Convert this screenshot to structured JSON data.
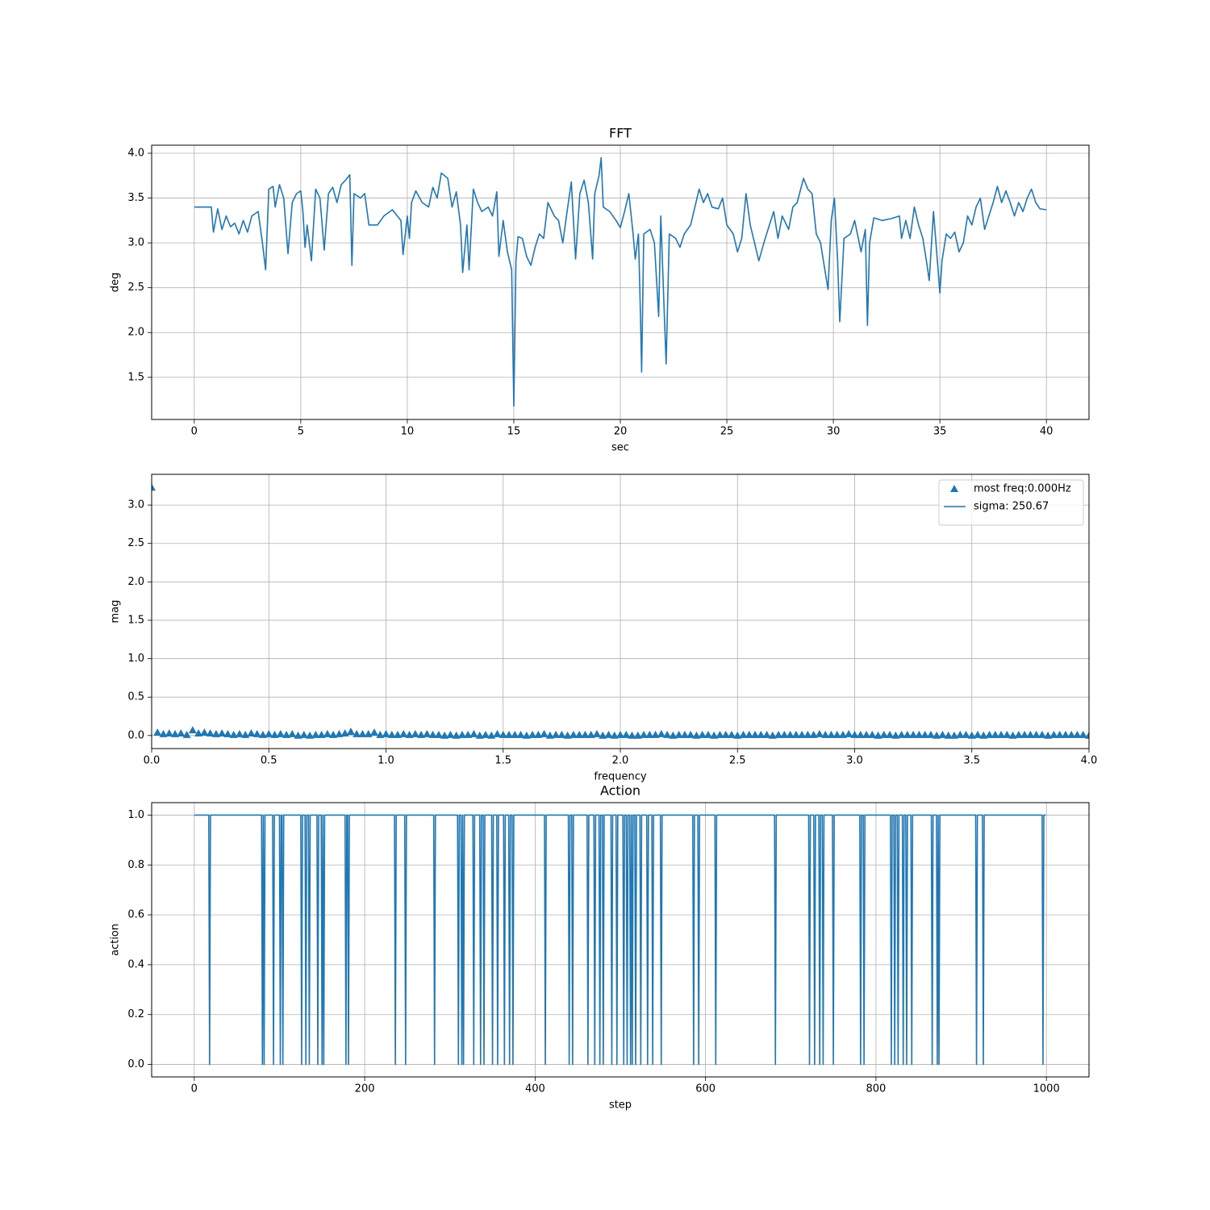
{
  "chart_data": [
    {
      "type": "line",
      "title": "FFT",
      "xlabel": "sec",
      "ylabel": "deg",
      "color": "#1f77b4",
      "grid": true,
      "xlim": [
        -2,
        42
      ],
      "ylim": [
        1.03,
        4.09
      ],
      "xticks": [
        0,
        5,
        10,
        15,
        20,
        25,
        30,
        35,
        40
      ],
      "yticks": [
        1.5,
        {
          "value": 2.0,
          "label": "2.0"
        },
        2.5,
        {
          "value": 3.0,
          "label": "3.0"
        },
        3.5,
        {
          "value": 4.0,
          "label": "4.0"
        }
      ],
      "x": [
        0,
        0.8,
        0.9,
        1.1,
        1.3,
        1.5,
        1.7,
        1.9,
        2.1,
        2.3,
        2.5,
        2.7,
        3.0,
        3.2,
        3.35,
        3.5,
        3.7,
        3.8,
        4.0,
        4.2,
        4.4,
        4.6,
        4.8,
        5.0,
        5.1,
        5.2,
        5.3,
        5.5,
        5.7,
        5.9,
        6.1,
        6.3,
        6.5,
        6.7,
        6.9,
        7.1,
        7.3,
        7.4,
        7.5,
        7.8,
        8.0,
        8.2,
        8.6,
        8.9,
        9.3,
        9.7,
        9.8,
        10.0,
        10.1,
        10.2,
        10.4,
        10.7,
        11.0,
        11.2,
        11.4,
        11.6,
        11.9,
        12.1,
        12.3,
        12.5,
        12.6,
        12.8,
        12.9,
        13.1,
        13.3,
        13.5,
        13.8,
        14.0,
        14.2,
        14.3,
        14.5,
        14.7,
        14.9,
        15.0,
        15.1,
        15.2,
        15.4,
        15.6,
        15.8,
        16.0,
        16.2,
        16.4,
        16.6,
        16.9,
        17.1,
        17.3,
        17.5,
        17.7,
        17.9,
        18.1,
        18.3,
        18.5,
        18.7,
        18.8,
        19.0,
        19.1,
        19.2,
        19.5,
        19.8,
        20.0,
        20.2,
        20.4,
        20.6,
        20.7,
        20.85,
        20.95,
        21.0,
        21.1,
        21.4,
        21.6,
        21.8,
        21.9,
        22.05,
        22.15,
        22.3,
        22.6,
        22.8,
        23.0,
        23.3,
        23.5,
        23.7,
        23.9,
        24.1,
        24.3,
        24.6,
        24.8,
        25.0,
        25.3,
        25.5,
        25.7,
        25.9,
        26.1,
        26.3,
        26.5,
        26.8,
        27.0,
        27.2,
        27.4,
        27.6,
        27.9,
        28.1,
        28.3,
        28.6,
        28.8,
        29.0,
        29.2,
        29.4,
        29.6,
        29.75,
        29.9,
        30.05,
        30.2,
        30.3,
        30.5,
        30.8,
        31.0,
        31.3,
        31.5,
        31.6,
        31.7,
        31.9,
        32.3,
        32.7,
        33.1,
        33.2,
        33.4,
        33.6,
        33.8,
        34.0,
        34.2,
        34.4,
        34.5,
        34.7,
        34.9,
        35.0,
        35.1,
        35.3,
        35.5,
        35.7,
        35.9,
        36.1,
        36.3,
        36.5,
        36.7,
        36.9,
        37.1,
        37.3,
        37.5,
        37.7,
        37.9,
        38.1,
        38.3,
        38.5,
        38.7,
        38.9,
        39.1,
        39.3,
        39.5,
        39.7,
        40.0
      ],
      "values": [
        3.4,
        3.4,
        3.12,
        3.38,
        3.15,
        3.3,
        3.18,
        3.22,
        3.1,
        3.25,
        3.12,
        3.3,
        3.35,
        3.0,
        2.7,
        3.6,
        3.63,
        3.4,
        3.65,
        3.5,
        2.88,
        3.45,
        3.55,
        3.58,
        3.35,
        2.95,
        3.2,
        2.8,
        3.6,
        3.5,
        2.92,
        3.55,
        3.62,
        3.45,
        3.65,
        3.7,
        3.76,
        2.75,
        3.55,
        3.5,
        3.55,
        3.2,
        3.2,
        3.3,
        3.37,
        3.25,
        2.87,
        3.3,
        3.05,
        3.45,
        3.58,
        3.45,
        3.4,
        3.62,
        3.5,
        3.78,
        3.72,
        3.4,
        3.57,
        3.2,
        2.67,
        3.2,
        2.7,
        3.6,
        3.45,
        3.35,
        3.4,
        3.3,
        3.57,
        2.85,
        3.25,
        2.9,
        2.7,
        1.18,
        2.8,
        3.07,
        3.05,
        2.85,
        2.75,
        2.95,
        3.1,
        3.05,
        3.45,
        3.3,
        3.25,
        3.0,
        3.35,
        3.68,
        2.82,
        3.55,
        3.7,
        3.45,
        2.82,
        3.55,
        3.75,
        3.95,
        3.4,
        3.35,
        3.25,
        3.17,
        3.35,
        3.55,
        3.1,
        2.82,
        3.1,
        2.15,
        1.56,
        3.1,
        3.15,
        3.0,
        2.18,
        3.3,
        2.3,
        1.65,
        3.1,
        3.05,
        2.95,
        3.1,
        3.2,
        3.4,
        3.6,
        3.45,
        3.55,
        3.4,
        3.38,
        3.5,
        3.2,
        3.1,
        2.9,
        3.05,
        3.55,
        3.2,
        3.0,
        2.8,
        3.05,
        3.2,
        3.35,
        3.05,
        3.3,
        3.15,
        3.4,
        3.45,
        3.72,
        3.6,
        3.55,
        3.1,
        3.0,
        2.7,
        2.48,
        3.25,
        3.5,
        2.8,
        2.12,
        3.05,
        3.1,
        3.25,
        2.9,
        3.15,
        2.08,
        3.0,
        3.28,
        3.25,
        3.27,
        3.3,
        3.05,
        3.25,
        3.05,
        3.4,
        3.2,
        3.05,
        2.75,
        2.58,
        3.35,
        2.75,
        2.44,
        2.8,
        3.1,
        3.05,
        3.12,
        2.9,
        3.0,
        3.3,
        3.2,
        3.4,
        3.5,
        3.15,
        3.3,
        3.45,
        3.63,
        3.45,
        3.58,
        3.45,
        3.3,
        3.45,
        3.35,
        3.5,
        3.6,
        3.45,
        3.38,
        3.37
      ]
    },
    {
      "type": "scatter",
      "xlabel": "frequency",
      "ylabel": "mag",
      "grid": true,
      "legend": "upper right",
      "xlim": [
        0,
        4
      ],
      "ylim": [
        -0.17,
        3.4
      ],
      "xticks": [
        {
          "value": 0,
          "label": "0.0"
        },
        0.5,
        {
          "value": 1,
          "label": "1.0"
        },
        1.5,
        {
          "value": 2,
          "label": "2.0"
        },
        2.5,
        {
          "value": 3,
          "label": "3.0"
        },
        3.5,
        {
          "value": 4,
          "label": "4.0"
        }
      ],
      "yticks": [
        {
          "value": 0,
          "label": "0.0"
        },
        0.5,
        {
          "value": 1,
          "label": "1.0"
        },
        1.5,
        {
          "value": 2,
          "label": "2.0"
        },
        2.5,
        {
          "value": 3,
          "label": "3.0"
        }
      ],
      "series": [
        {
          "name": "most freq:0.000Hz",
          "color": "#1f77b4",
          "marker": "triangle",
          "x": [
            0,
            0.025,
            0.05,
            0.075,
            0.1,
            0.125,
            0.15,
            0.175,
            0.2,
            0.225,
            0.25,
            0.275,
            0.3,
            0.325,
            0.35,
            0.375,
            0.4,
            0.425,
            0.45,
            0.475,
            0.5,
            0.525,
            0.55,
            0.575,
            0.6,
            0.625,
            0.65,
            0.675,
            0.7,
            0.725,
            0.75,
            0.775,
            0.8,
            0.825,
            0.85,
            0.875,
            0.9,
            0.925,
            0.95,
            0.975,
            1,
            1.025,
            1.05,
            1.075,
            1.1,
            1.125,
            1.15,
            1.175,
            1.2,
            1.225,
            1.25,
            1.275,
            1.3,
            1.325,
            1.35,
            1.375,
            1.4,
            1.425,
            1.45,
            1.475,
            1.5,
            1.525,
            1.55,
            1.575,
            1.6,
            1.625,
            1.65,
            1.675,
            1.7,
            1.725,
            1.75,
            1.775,
            1.8,
            1.825,
            1.85,
            1.875,
            1.9,
            1.925,
            1.95,
            1.975,
            2,
            2.025,
            2.05,
            2.075,
            2.1,
            2.125,
            2.15,
            2.175,
            2.2,
            2.225,
            2.25,
            2.275,
            2.3,
            2.325,
            2.35,
            2.375,
            2.4,
            2.425,
            2.45,
            2.475,
            2.5,
            2.525,
            2.55,
            2.575,
            2.6,
            2.625,
            2.65,
            2.675,
            2.7,
            2.725,
            2.75,
            2.775,
            2.8,
            2.825,
            2.85,
            2.875,
            2.9,
            2.925,
            2.95,
            2.975,
            3,
            3.025,
            3.05,
            3.075,
            3.1,
            3.125,
            3.15,
            3.175,
            3.2,
            3.225,
            3.25,
            3.275,
            3.3,
            3.325,
            3.35,
            3.375,
            3.4,
            3.425,
            3.45,
            3.475,
            3.5,
            3.525,
            3.55,
            3.575,
            3.6,
            3.625,
            3.65,
            3.675,
            3.7,
            3.725,
            3.75,
            3.775,
            3.8,
            3.825,
            3.85,
            3.875,
            3.9,
            3.925,
            3.95,
            3.975,
            4
          ],
          "values": [
            3.23,
            0.04,
            0.02,
            0.03,
            0.02,
            0.03,
            0.01,
            0.07,
            0.03,
            0.04,
            0.03,
            0.02,
            0.03,
            0.02,
            0.01,
            0.02,
            0.01,
            0.03,
            0.02,
            0.01,
            0.02,
            0.01,
            0.02,
            0.01,
            0.02,
            0.0,
            0.01,
            0.0,
            0.01,
            0.01,
            0.02,
            0.01,
            0.02,
            0.03,
            0.05,
            0.02,
            0.02,
            0.02,
            0.04,
            0.01,
            0.02,
            0.01,
            0.01,
            0.02,
            0.01,
            0.02,
            0.01,
            0.02,
            0.01,
            0.01,
            0.0,
            0.01,
            0.0,
            0.01,
            0.01,
            0.02,
            0.0,
            0.01,
            0.0,
            0.02,
            0.01,
            0.01,
            0.01,
            0.01,
            0.0,
            0.01,
            0.01,
            0.02,
            0.0,
            0.01,
            0.01,
            0.0,
            0.01,
            0.01,
            0.01,
            0.01,
            0.02,
            0.0,
            0.01,
            0.0,
            0.01,
            0.01,
            0.0,
            0.0,
            0.01,
            0.01,
            0.01,
            0.02,
            0.01,
            0.0,
            0.01,
            0.01,
            0.01,
            0.0,
            0.01,
            0.01,
            0.0,
            0.01,
            0.01,
            0.01,
            0.0,
            0.01,
            0.01,
            0.01,
            0.01,
            0.01,
            0.0,
            0.01,
            0.01,
            0.01,
            0.01,
            0.01,
            0.01,
            0.01,
            0.02,
            0.01,
            0.01,
            0.01,
            0.01,
            0.02,
            0.01,
            0.01,
            0.01,
            0.01,
            0.0,
            0.01,
            0.01,
            0.0,
            0.01,
            0.01,
            0.01,
            0.01,
            0.01,
            0.01,
            0.0,
            0.01,
            0.0,
            0.0,
            0.01,
            0.01,
            0.0,
            0.01,
            0.0,
            0.01,
            0.01,
            0.01,
            0.01,
            0.0,
            0.01,
            0.01,
            0.01,
            0.01,
            0.01,
            0.0,
            0.01,
            0.01,
            0.01,
            0.01,
            0.01,
            0.01,
            0.0
          ]
        },
        {
          "name": "sigma: 250.67",
          "color": "#1f77b4",
          "linestyle": "solid"
        }
      ]
    },
    {
      "type": "line",
      "title": "Action",
      "xlabel": "step",
      "ylabel": "action",
      "color": "#1f77b4",
      "grid": true,
      "xlim": [
        -50,
        1050
      ],
      "ylim": [
        -0.05,
        1.05
      ],
      "xticks": [
        0,
        200,
        400,
        600,
        800,
        1000
      ],
      "yticks": [
        {
          "value": 0,
          "label": "0.0"
        },
        0.2,
        0.4,
        0.6,
        0.8,
        {
          "value": 1,
          "label": "1.0"
        }
      ],
      "x": [
        0,
        17,
        18,
        19,
        79,
        80,
        81,
        82,
        83,
        92,
        93,
        94,
        100,
        101,
        102,
        103,
        104,
        105,
        125,
        126,
        127,
        130,
        131,
        132,
        134,
        135,
        136,
        144,
        145,
        146,
        149,
        150,
        151,
        152,
        153,
        177,
        178,
        179,
        180,
        181,
        182,
        235,
        236,
        237,
        247,
        248,
        249,
        281,
        282,
        283,
        309,
        310,
        311,
        313,
        314,
        315,
        316,
        317,
        327,
        328,
        329,
        335,
        336,
        337,
        339,
        340,
        341,
        349,
        350,
        351,
        355,
        356,
        357,
        363,
        364,
        365,
        369,
        370,
        371,
        373,
        374,
        375,
        411,
        412,
        413,
        439,
        440,
        441,
        443,
        444,
        445,
        461,
        462,
        463,
        469,
        470,
        471,
        475,
        476,
        477,
        479,
        480,
        481,
        489,
        490,
        491,
        495,
        496,
        497,
        503,
        504,
        505,
        507,
        508,
        509,
        511,
        512,
        513,
        514,
        515,
        517,
        518,
        519,
        523,
        524,
        525,
        531,
        532,
        533,
        537,
        538,
        539,
        547,
        548,
        549,
        585,
        586,
        587,
        591,
        592,
        593,
        611,
        612,
        613,
        681,
        682,
        683,
        721,
        722,
        723,
        727,
        728,
        729,
        733,
        734,
        735,
        737,
        738,
        739,
        749,
        750,
        751,
        781,
        782,
        783,
        785,
        786,
        787,
        817,
        818,
        819,
        821,
        822,
        823,
        825,
        826,
        827,
        831,
        832,
        833,
        835,
        836,
        837,
        841,
        842,
        843,
        865,
        866,
        867,
        871,
        872,
        873,
        874,
        875,
        917,
        918,
        919,
        925,
        926,
        927,
        995,
        996,
        997,
        999
      ],
      "values": [
        1,
        1,
        0,
        1,
        1,
        0,
        1,
        0,
        1,
        1,
        0,
        1,
        1,
        0,
        1,
        1,
        0,
        1,
        1,
        0,
        1,
        1,
        0,
        1,
        1,
        0,
        1,
        1,
        0,
        1,
        1,
        0,
        1,
        0,
        1,
        1,
        0,
        1,
        1,
        0,
        1,
        1,
        0,
        1,
        1,
        0,
        1,
        1,
        0,
        1,
        1,
        0,
        1,
        1,
        0,
        1,
        0,
        1,
        1,
        0,
        1,
        1,
        0,
        1,
        1,
        0,
        1,
        1,
        0,
        1,
        1,
        0,
        1,
        1,
        0,
        1,
        1,
        0,
        1,
        1,
        0,
        1,
        1,
        0,
        1,
        1,
        0,
        1,
        1,
        0,
        1,
        1,
        0,
        1,
        1,
        0,
        1,
        1,
        0,
        1,
        1,
        0,
        1,
        1,
        0,
        1,
        1,
        0,
        1,
        1,
        0,
        1,
        1,
        0,
        1,
        1,
        0,
        1,
        0,
        1,
        1,
        0,
        1,
        1,
        0,
        1,
        1,
        0,
        1,
        1,
        0,
        1,
        1,
        0,
        1,
        1,
        0,
        1,
        1,
        0,
        1,
        1,
        0,
        1,
        1,
        0,
        1,
        1,
        0,
        1,
        1,
        0,
        1,
        1,
        0,
        1,
        1,
        0,
        1,
        1,
        0,
        1,
        1,
        0,
        1,
        1,
        0,
        1,
        1,
        0,
        1,
        1,
        0,
        1,
        1,
        0,
        1,
        1,
        0,
        1,
        1,
        0,
        1,
        1,
        0,
        1,
        1,
        0,
        1,
        1,
        0,
        1,
        0,
        1,
        1,
        0,
        1,
        1,
        0,
        1,
        1,
        0,
        1,
        1
      ]
    }
  ]
}
